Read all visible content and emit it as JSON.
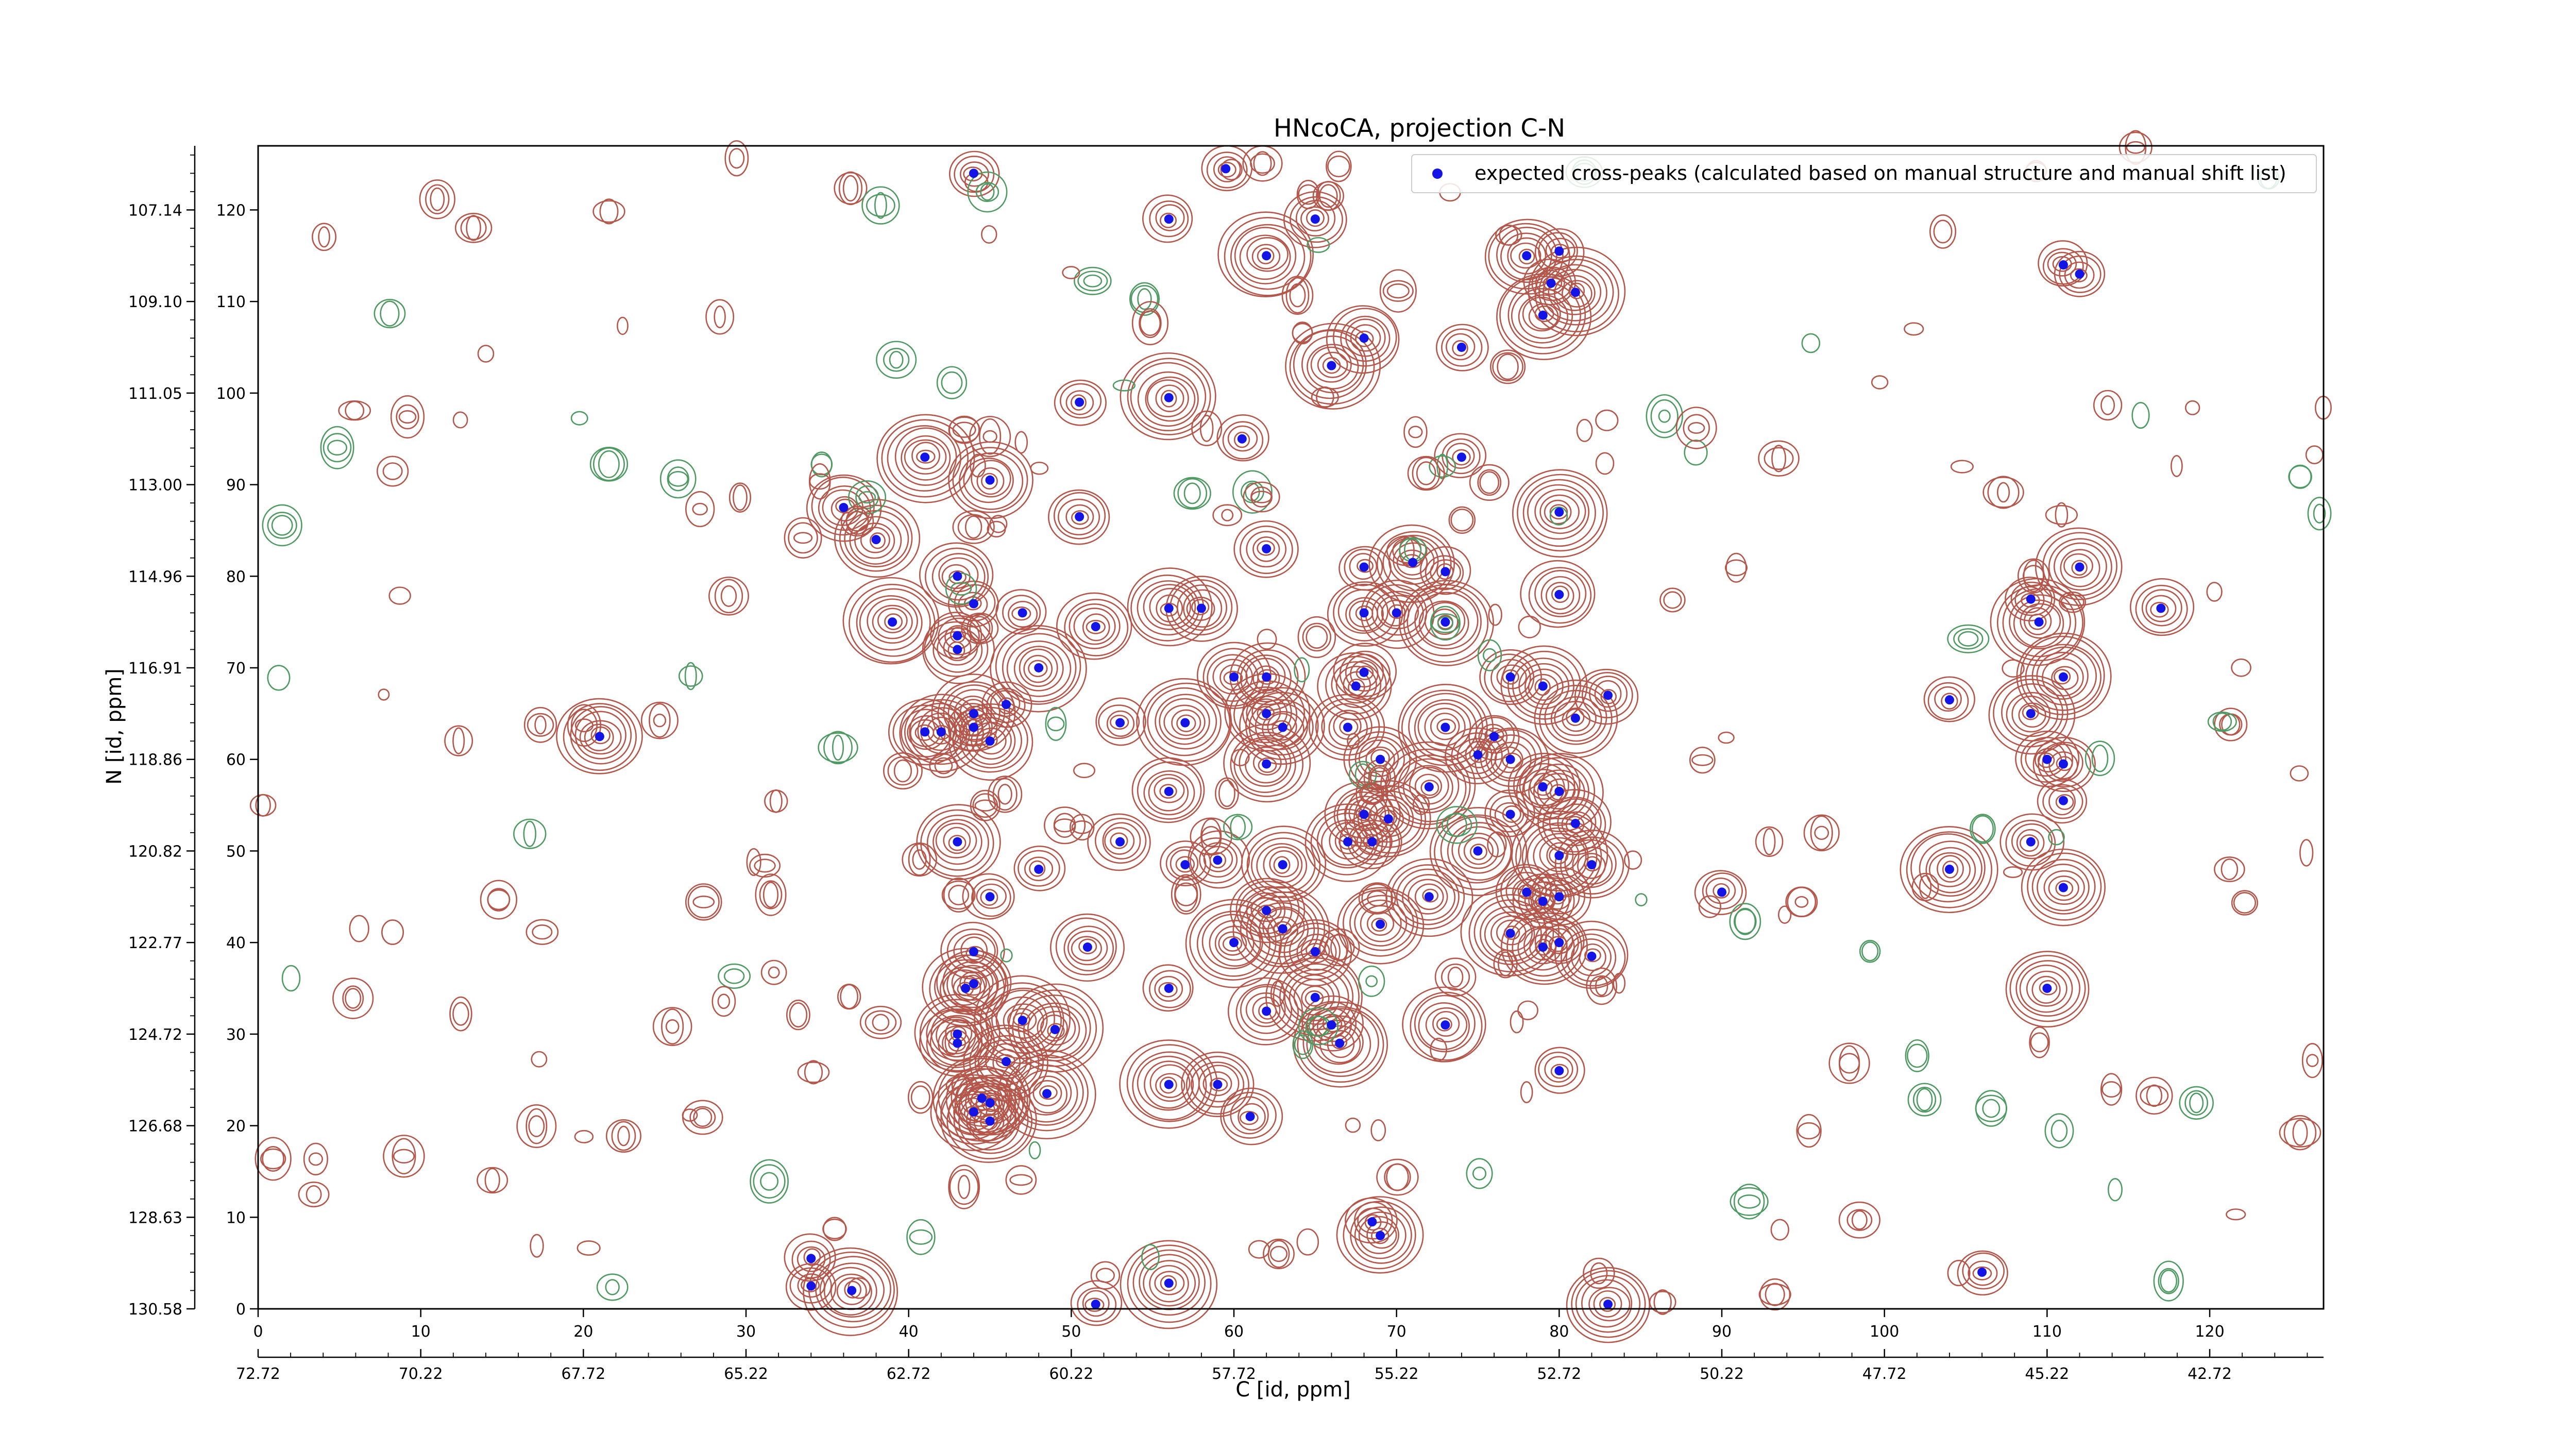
{
  "chart_data": {
    "type": "scatter",
    "title": "HNcoCA, projection C-N",
    "xlabel": "C [id, ppm]",
    "ylabel": "N [id, ppm]",
    "xlim": [
      0,
      127
    ],
    "ylim": [
      0,
      127
    ],
    "x_ticks": [
      0,
      10,
      20,
      30,
      40,
      50,
      60,
      70,
      80,
      90,
      100,
      110,
      120
    ],
    "y_ticks": [
      0,
      10,
      20,
      30,
      40,
      50,
      60,
      70,
      80,
      90,
      100,
      110,
      120
    ],
    "secondary_x_axis": {
      "label": "C [id, ppm]",
      "ticks": [
        {
          "pos": 0,
          "label": "72.72"
        },
        {
          "pos": 10,
          "label": "70.22"
        },
        {
          "pos": 20,
          "label": "67.72"
        },
        {
          "pos": 30,
          "label": "65.22"
        },
        {
          "pos": 40,
          "label": "62.72"
        },
        {
          "pos": 50,
          "label": "60.22"
        },
        {
          "pos": 60,
          "label": "57.72"
        },
        {
          "pos": 70,
          "label": "55.22"
        },
        {
          "pos": 80,
          "label": "52.72"
        },
        {
          "pos": 90,
          "label": "50.22"
        },
        {
          "pos": 100,
          "label": "47.72"
        },
        {
          "pos": 110,
          "label": "45.22"
        },
        {
          "pos": 120,
          "label": "42.72"
        }
      ]
    },
    "secondary_y_axis": {
      "label": "N [id, ppm]",
      "ticks": [
        {
          "pos": 0,
          "label": "130.58"
        },
        {
          "pos": 10,
          "label": "128.63"
        },
        {
          "pos": 20,
          "label": "126.68"
        },
        {
          "pos": 30,
          "label": "124.72"
        },
        {
          "pos": 40,
          "label": "122.77"
        },
        {
          "pos": 50,
          "label": "120.82"
        },
        {
          "pos": 60,
          "label": "118.86"
        },
        {
          "pos": 70,
          "label": "116.91"
        },
        {
          "pos": 80,
          "label": "114.96"
        },
        {
          "pos": 90,
          "label": "113.00"
        },
        {
          "pos": 100,
          "label": "111.05"
        },
        {
          "pos": 110,
          "label": "109.10"
        },
        {
          "pos": 120,
          "label": "107.14"
        }
      ]
    },
    "legend": {
      "position": "top-right"
    },
    "series": [
      {
        "name": "expected cross-peaks (calculated based on manual structure and manual shift list)",
        "color": "#1414e6",
        "points": [
          [
            44,
            124
          ],
          [
            59.5,
            124.5
          ],
          [
            56,
            119
          ],
          [
            65,
            119
          ],
          [
            62,
            115
          ],
          [
            80,
            115.5
          ],
          [
            79.5,
            112
          ],
          [
            81,
            111
          ],
          [
            78,
            115
          ],
          [
            79,
            108.5
          ],
          [
            111,
            114
          ],
          [
            112,
            113
          ],
          [
            68,
            106
          ],
          [
            66,
            103
          ],
          [
            74,
            105
          ],
          [
            50.5,
            99
          ],
          [
            56,
            99.5
          ],
          [
            60.5,
            95
          ],
          [
            74,
            93
          ],
          [
            41,
            93
          ],
          [
            45,
            90.5
          ],
          [
            50.5,
            86.5
          ],
          [
            80,
            87
          ],
          [
            36,
            87.5
          ],
          [
            38,
            84
          ],
          [
            62,
            83
          ],
          [
            68,
            81
          ],
          [
            71,
            81.5
          ],
          [
            73,
            80.5
          ],
          [
            43,
            80
          ],
          [
            44,
            77
          ],
          [
            80,
            78
          ],
          [
            56,
            76.5
          ],
          [
            58,
            76.5
          ],
          [
            47,
            76
          ],
          [
            51.5,
            74.5
          ],
          [
            39,
            75
          ],
          [
            43,
            73.5
          ],
          [
            68,
            76
          ],
          [
            70,
            76
          ],
          [
            73,
            75
          ],
          [
            112,
            81
          ],
          [
            109,
            77.5
          ],
          [
            109.5,
            75
          ],
          [
            117,
            76.5
          ],
          [
            43,
            72
          ],
          [
            48,
            70
          ],
          [
            60,
            69
          ],
          [
            62,
            69
          ],
          [
            68,
            69.5
          ],
          [
            67.5,
            68
          ],
          [
            77,
            69
          ],
          [
            79,
            68
          ],
          [
            83,
            67
          ],
          [
            81,
            64.5
          ],
          [
            104,
            66.5
          ],
          [
            109,
            65
          ],
          [
            111,
            69
          ],
          [
            44,
            65
          ],
          [
            46,
            66
          ],
          [
            53,
            64
          ],
          [
            57,
            64
          ],
          [
            62,
            65
          ],
          [
            63,
            63.5
          ],
          [
            67,
            63.5
          ],
          [
            73,
            63.5
          ],
          [
            45,
            62
          ],
          [
            41,
            63
          ],
          [
            42,
            63
          ],
          [
            44,
            63.5
          ],
          [
            21,
            62.5
          ],
          [
            76,
            62.5
          ],
          [
            62,
            59.5
          ],
          [
            69,
            60
          ],
          [
            75,
            60.5
          ],
          [
            77,
            60
          ],
          [
            79,
            57
          ],
          [
            80,
            56.5
          ],
          [
            110,
            60
          ],
          [
            111,
            59.5
          ],
          [
            72,
            57
          ],
          [
            56,
            56.5
          ],
          [
            111,
            55.5
          ],
          [
            68,
            54
          ],
          [
            69.5,
            53.5
          ],
          [
            77,
            54
          ],
          [
            81,
            53
          ],
          [
            53,
            51
          ],
          [
            43,
            51
          ],
          [
            67,
            51
          ],
          [
            68.5,
            51
          ],
          [
            59,
            49
          ],
          [
            57,
            48.5
          ],
          [
            63,
            48.5
          ],
          [
            75,
            50
          ],
          [
            80,
            49.5
          ],
          [
            82,
            48.5
          ],
          [
            109,
            51
          ],
          [
            104,
            48
          ],
          [
            48,
            48
          ],
          [
            72,
            45
          ],
          [
            78,
            45.5
          ],
          [
            79,
            44.5
          ],
          [
            80,
            45
          ],
          [
            90,
            45.5
          ],
          [
            111,
            46
          ],
          [
            45,
            45
          ],
          [
            62,
            43.5
          ],
          [
            63,
            41.5
          ],
          [
            69,
            42
          ],
          [
            60,
            40
          ],
          [
            65,
            39
          ],
          [
            51,
            39.5
          ],
          [
            44,
            39
          ],
          [
            77,
            41
          ],
          [
            79,
            39.5
          ],
          [
            80,
            40
          ],
          [
            82,
            38.5
          ],
          [
            43.5,
            35
          ],
          [
            44,
            35.5
          ],
          [
            56,
            35
          ],
          [
            62,
            32.5
          ],
          [
            65,
            34
          ],
          [
            66,
            31
          ],
          [
            73,
            31
          ],
          [
            110,
            35
          ],
          [
            43,
            30
          ],
          [
            43,
            29
          ],
          [
            47,
            31.5
          ],
          [
            49,
            30.5
          ],
          [
            66.5,
            29
          ],
          [
            46,
            27
          ],
          [
            80,
            26
          ],
          [
            59,
            24.5
          ],
          [
            56,
            24.5
          ],
          [
            48.5,
            23.5
          ],
          [
            44.5,
            23
          ],
          [
            45,
            22.5
          ],
          [
            44,
            21.5
          ],
          [
            45,
            20.5
          ],
          [
            61,
            21
          ],
          [
            68.5,
            9.5
          ],
          [
            69,
            8
          ],
          [
            34,
            5.5
          ],
          [
            34,
            2.5
          ],
          [
            36.5,
            2
          ],
          [
            51.5,
            0.5
          ],
          [
            56,
            2.8
          ],
          [
            83,
            0.5
          ],
          [
            106,
            4
          ]
        ]
      }
    ]
  }
}
